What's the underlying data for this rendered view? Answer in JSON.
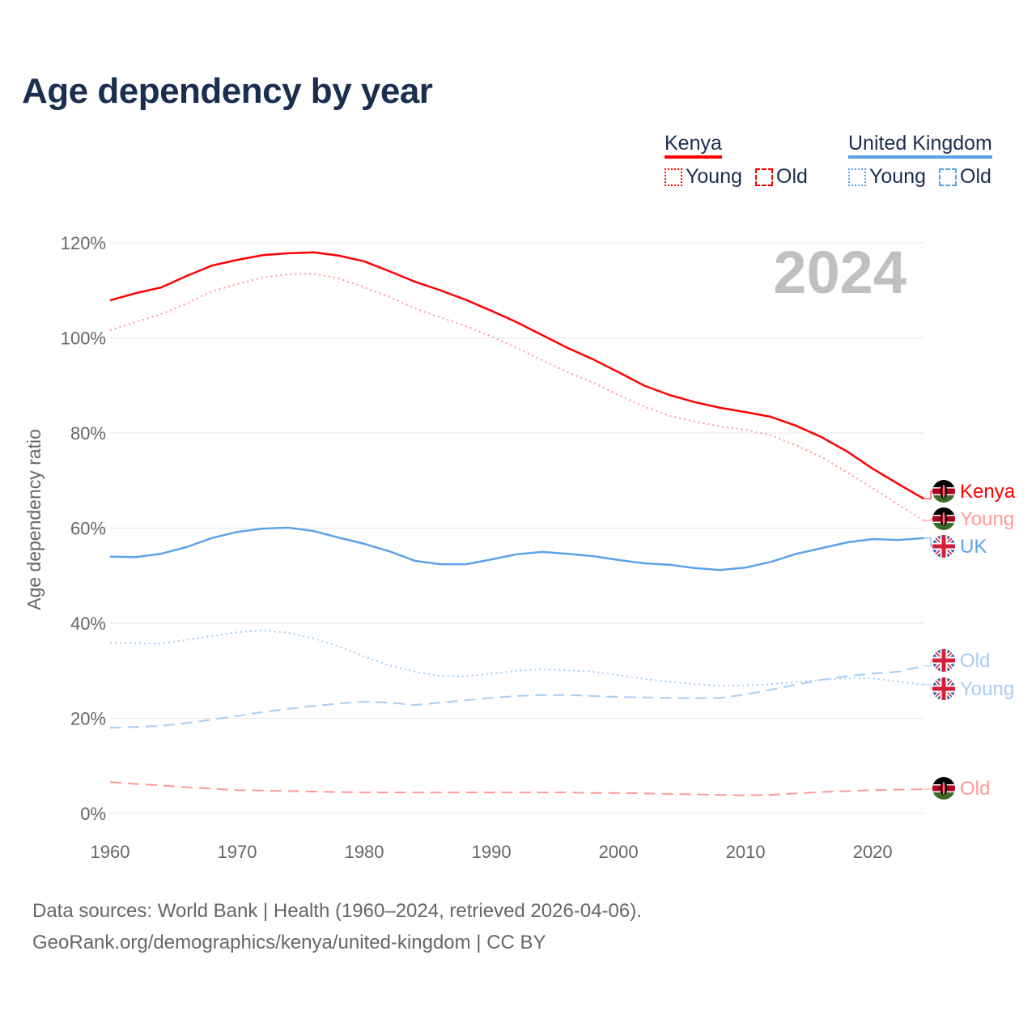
{
  "title": "Age dependency by year",
  "legend": {
    "groups": [
      {
        "name": "Kenya",
        "color": "#ff0000",
        "items": [
          "Young",
          "Old"
        ]
      },
      {
        "name": "United Kingdom",
        "color": "#5ba3e8",
        "items": [
          "Young",
          "Old"
        ]
      }
    ]
  },
  "footer": {
    "line1": "Data sources: World Bank | Health (1960–2024, retrieved 2026-04-06).",
    "line2": "GeoRank.org/demographics/kenya/united-kingdom | CC BY"
  },
  "chart_data": {
    "type": "line",
    "title": "Age dependency by year",
    "ylabel": "Age dependency ratio",
    "xlabel": "",
    "year_label": "2024",
    "xlim": [
      1960,
      2024
    ],
    "ylim": [
      0,
      120
    ],
    "x_ticks": [
      "1960",
      "1970",
      "1980",
      "1990",
      "2000",
      "2010",
      "2020"
    ],
    "y_ticks": [
      "0%",
      "20%",
      "40%",
      "60%",
      "80%",
      "100%",
      "120%"
    ],
    "grid": true,
    "x": [
      1960,
      1962,
      1964,
      1966,
      1968,
      1970,
      1972,
      1974,
      1976,
      1978,
      1980,
      1982,
      1984,
      1986,
      1988,
      1990,
      1992,
      1994,
      1996,
      1998,
      2000,
      2002,
      2004,
      2006,
      2008,
      2010,
      2012,
      2014,
      2016,
      2018,
      2020,
      2022,
      2024
    ],
    "series": [
      {
        "name": "Kenya",
        "end_label": "Kenya",
        "country": "kenya",
        "color": "#ff0000",
        "style": "solid",
        "values": [
          107.9,
          109.4,
          110.6,
          113,
          115.2,
          116.4,
          117.4,
          117.8,
          118,
          117.3,
          116.1,
          114,
          111.8,
          110,
          108,
          105.7,
          103.3,
          100.6,
          97.9,
          95.5,
          92.8,
          90,
          88,
          86.5,
          85.3,
          84.4,
          83.4,
          81.5,
          79.1,
          76.1,
          72.5,
          69.3,
          66.2
        ]
      },
      {
        "name": "Kenya Young",
        "end_label": "Young",
        "country": "kenya",
        "color": "#ff9999",
        "style": "dotted",
        "values": [
          101.6,
          103.3,
          105,
          107.2,
          109.8,
          111.3,
          112.7,
          113.4,
          113.5,
          112.5,
          110.6,
          108.6,
          106.2,
          104.3,
          102.5,
          100.3,
          97.9,
          95.3,
          92.8,
          90.6,
          88,
          85.6,
          83.6,
          82.4,
          81.4,
          80.7,
          79.5,
          77.4,
          74.9,
          71.7,
          68.4,
          65,
          61.6
        ]
      },
      {
        "name": "United Kingdom",
        "end_label": "UK",
        "country": "uk",
        "color": "#5ba3e8",
        "style": "solid",
        "values": [
          54,
          53.9,
          54.6,
          56,
          57.9,
          59.2,
          59.9,
          60.1,
          59.4,
          58,
          56.7,
          55.1,
          53.1,
          52.4,
          52.4,
          53.4,
          54.5,
          55,
          54.6,
          54.1,
          53.3,
          52.6,
          52.3,
          51.6,
          51.2,
          51.7,
          52.9,
          54.6,
          55.8,
          57,
          57.7,
          57.5,
          57.9
        ]
      },
      {
        "name": "United Kingdom Old",
        "end_label": "Old",
        "country": "uk",
        "color": "#a8cdf2",
        "style": "dashed",
        "values": [
          18,
          18.2,
          18.4,
          19,
          19.7,
          20.5,
          21.3,
          22,
          22.6,
          23.1,
          23.5,
          23.3,
          22.8,
          23.3,
          23.8,
          24.3,
          24.7,
          24.9,
          24.9,
          24.7,
          24.5,
          24.4,
          24.3,
          24.2,
          24.3,
          25,
          26,
          27.1,
          28.1,
          28.9,
          29.4,
          29.8,
          31
        ]
      },
      {
        "name": "United Kingdom Young",
        "end_label": "Young",
        "country": "uk",
        "color": "#a8cdf2",
        "style": "dotted",
        "values": [
          35.9,
          35.8,
          35.7,
          36.5,
          37.3,
          38.1,
          38.5,
          38,
          36.8,
          35.1,
          33,
          31.1,
          29.8,
          28.9,
          28.8,
          29.4,
          30,
          30.3,
          30.1,
          29.8,
          29.1,
          28.3,
          27.7,
          27.2,
          26.9,
          26.9,
          27.2,
          27.6,
          28.1,
          28.4,
          28.4,
          27.7,
          27.1
        ]
      },
      {
        "name": "Kenya Old",
        "end_label": "Old",
        "country": "kenya",
        "color": "#ff9999",
        "style": "dashed",
        "values": [
          6.6,
          6.2,
          5.9,
          5.5,
          5.2,
          4.9,
          4.8,
          4.7,
          4.6,
          4.5,
          4.4,
          4.4,
          4.4,
          4.4,
          4.4,
          4.4,
          4.4,
          4.4,
          4.4,
          4.3,
          4.3,
          4.2,
          4.1,
          4.0,
          3.9,
          3.8,
          3.9,
          4.2,
          4.5,
          4.7,
          4.9,
          5.0,
          5.1
        ]
      }
    ]
  }
}
